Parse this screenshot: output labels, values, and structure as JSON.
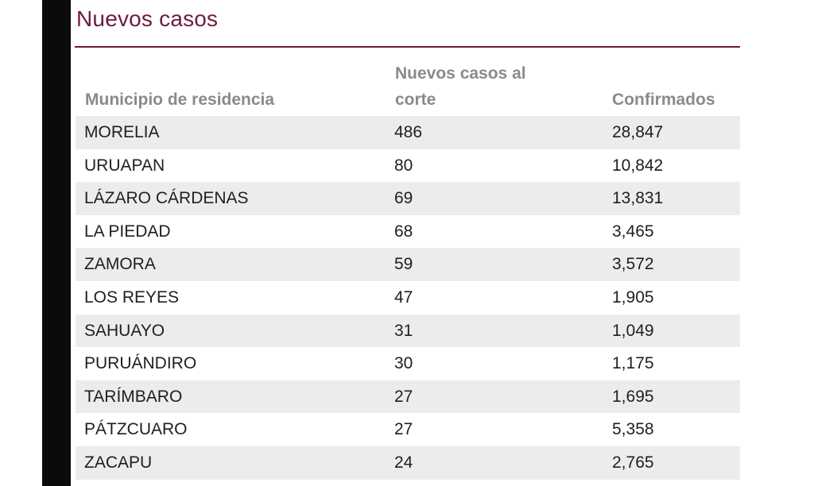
{
  "title": "Nuevos casos",
  "table": {
    "headers": {
      "municipio": "Municipio de residencia",
      "nuevos": "Nuevos casos al corte",
      "confirmados": "Confirmados"
    },
    "rows": [
      {
        "municipio": "MORELIA",
        "nuevos": "486",
        "confirmados": "28,847"
      },
      {
        "municipio": "URUAPAN",
        "nuevos": "80",
        "confirmados": "10,842"
      },
      {
        "municipio": "LÁZARO CÁRDENAS",
        "nuevos": "69",
        "confirmados": "13,831"
      },
      {
        "municipio": "LA PIEDAD",
        "nuevos": "68",
        "confirmados": "3,465"
      },
      {
        "municipio": "ZAMORA",
        "nuevos": "59",
        "confirmados": "3,572"
      },
      {
        "municipio": "LOS REYES",
        "nuevos": "47",
        "confirmados": "1,905"
      },
      {
        "municipio": "SAHUAYO",
        "nuevos": "31",
        "confirmados": "1,049"
      },
      {
        "municipio": "PURUÁNDIRO",
        "nuevos": "30",
        "confirmados": "1,175"
      },
      {
        "municipio": "TARÍMBARO",
        "nuevos": "27",
        "confirmados": "1,695"
      },
      {
        "municipio": "PÁTZCUARO",
        "nuevos": "27",
        "confirmados": "5,358"
      },
      {
        "municipio": "ZACAPU",
        "nuevos": "24",
        "confirmados": "2,765"
      }
    ]
  },
  "colors": {
    "title": "#6e1a44",
    "header_text": "#8a8a8a",
    "row_shade": "#ececec",
    "left_bar": "#0b0b0b"
  }
}
